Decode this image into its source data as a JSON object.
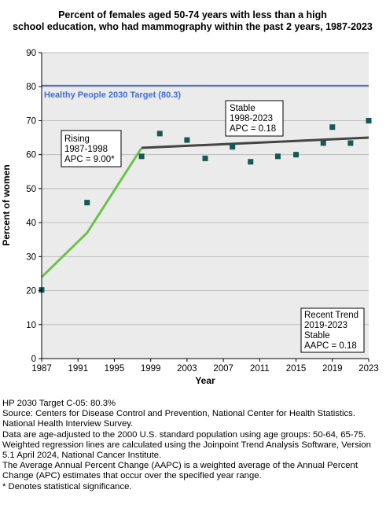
{
  "chart_data": {
    "type": "scatter",
    "title_lines": [
      "Percent of females aged 50-74 years with less than a high",
      "school education, who had mammography within the past 2 years, 1987-2023"
    ],
    "xlabel": "Year",
    "ylabel": "Percent of women",
    "xlim": [
      1987,
      2023
    ],
    "ylim": [
      0,
      90
    ],
    "x_ticks": [
      1987,
      1991,
      1995,
      1999,
      2003,
      2007,
      2011,
      2015,
      2019,
      2023
    ],
    "y_ticks": [
      0,
      10,
      20,
      30,
      40,
      50,
      60,
      70,
      80,
      90
    ],
    "grid": "horizontal",
    "target": {
      "label": "Healthy People 2030 Target (80.3)",
      "value": 80.3,
      "color": "#3f6fd6"
    },
    "points": [
      {
        "x": 1987,
        "y": 20.2
      },
      {
        "x": 1992,
        "y": 45.9
      },
      {
        "x": 1998,
        "y": 59.5
      },
      {
        "x": 2000,
        "y": 66.2
      },
      {
        "x": 2003,
        "y": 64.3
      },
      {
        "x": 2005,
        "y": 58.9
      },
      {
        "x": 2008,
        "y": 62.3
      },
      {
        "x": 2010,
        "y": 57.9
      },
      {
        "x": 2013,
        "y": 59.5
      },
      {
        "x": 2015,
        "y": 60.0
      },
      {
        "x": 2018,
        "y": 63.4
      },
      {
        "x": 2019,
        "y": 68.1
      },
      {
        "x": 2021,
        "y": 63.4
      },
      {
        "x": 2023,
        "y": 70.0
      }
    ],
    "point_color": "#14585a",
    "trend_segments": [
      {
        "color": "#6cc24a",
        "points": [
          [
            1987,
            24.0
          ],
          [
            1992,
            37.0
          ],
          [
            1998,
            62.0
          ]
        ]
      },
      {
        "color": "#444444",
        "points": [
          [
            1998,
            62.0
          ],
          [
            2023,
            65.0
          ]
        ]
      }
    ],
    "annotations": {
      "rising": [
        "Rising",
        "1987-1998",
        "APC =  9.00*"
      ],
      "stable": [
        "Stable",
        "1998-2023",
        "APC =  0.18"
      ],
      "recent": [
        "Recent Trend",
        "2019-2023",
        "Stable",
        "AAPC =  0.18"
      ]
    },
    "plot_bg": "#ebebeb"
  },
  "footnotes": [
    "HP 2030 Target C-05: 80.3%",
    "Source: Centers for Disease Control and Prevention, National Center for Health Statistics. National Health Interview Survey.",
    "Data are age-adjusted to the 2000 U.S. standard population using age groups: 50-64, 65-75.",
    "Weighted regression lines are calculated using the Joinpoint Trend Analysis Software, Version 5.1 April 2024, National Cancer Institute.",
    "The Average Annual Percent Change (AAPC) is a weighted average of the Annual Percent Change (APC) estimates that occur over the specified year range.",
    "* Denotes statistical significance."
  ]
}
